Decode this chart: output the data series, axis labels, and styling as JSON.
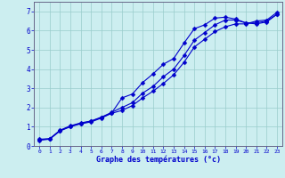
{
  "xlabel": "Graphe des températures (°c)",
  "bg_color": "#cceef0",
  "line_color": "#0000cc",
  "grid_color": "#99cccc",
  "xlim": [
    -0.5,
    23.5
  ],
  "ylim": [
    0,
    7.5
  ],
  "xticks": [
    0,
    1,
    2,
    3,
    4,
    5,
    6,
    7,
    8,
    9,
    10,
    11,
    12,
    13,
    14,
    15,
    16,
    17,
    18,
    19,
    20,
    21,
    22,
    23
  ],
  "yticks": [
    0,
    1,
    2,
    3,
    4,
    5,
    6,
    7
  ],
  "line1_x": [
    0,
    1,
    2,
    3,
    4,
    5,
    6,
    7,
    8,
    9,
    10,
    11,
    12,
    13,
    14,
    15,
    16,
    17,
    18,
    19,
    20,
    21,
    22,
    23
  ],
  "line1_y": [
    0.35,
    0.38,
    0.82,
    1.05,
    1.2,
    1.3,
    1.5,
    1.75,
    2.0,
    2.25,
    2.75,
    3.1,
    3.6,
    4.0,
    4.7,
    5.5,
    5.9,
    6.3,
    6.55,
    6.55,
    6.4,
    6.4,
    6.5,
    6.85
  ],
  "line2_x": [
    0,
    1,
    2,
    3,
    4,
    5,
    6,
    7,
    8,
    9,
    10,
    11,
    12,
    13,
    14,
    15,
    16,
    17,
    18,
    19,
    20,
    21,
    22,
    23
  ],
  "line2_y": [
    0.3,
    0.35,
    0.78,
    1.0,
    1.15,
    1.25,
    1.45,
    1.7,
    1.85,
    2.1,
    2.5,
    2.85,
    3.25,
    3.7,
    4.35,
    5.15,
    5.55,
    5.95,
    6.2,
    6.35,
    6.35,
    6.5,
    6.55,
    6.95
  ],
  "line3_x": [
    0,
    1,
    2,
    3,
    4,
    5,
    6,
    7,
    8,
    9,
    10,
    11,
    12,
    13,
    14,
    15,
    16,
    17,
    18,
    19,
    20,
    21,
    22,
    23
  ],
  "line3_y": [
    0.32,
    0.37,
    0.8,
    1.02,
    1.18,
    1.28,
    1.48,
    1.72,
    2.5,
    2.7,
    3.3,
    3.75,
    4.25,
    4.55,
    5.35,
    6.1,
    6.3,
    6.65,
    6.7,
    6.6,
    6.4,
    6.35,
    6.45,
    6.85
  ]
}
